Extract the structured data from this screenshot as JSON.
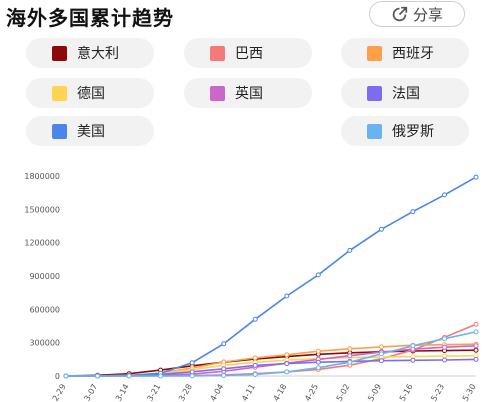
{
  "header": {
    "title": "海外多国累计趋势",
    "share_label": "分享"
  },
  "chart_data": {
    "type": "line",
    "title": "海外多国累计趋势",
    "categories": [
      "2-29",
      "3-07",
      "3-14",
      "3-21",
      "3-28",
      "4-04",
      "4-11",
      "4-18",
      "4-25",
      "5-02",
      "5-09",
      "5-16",
      "5-23",
      "5-30"
    ],
    "y_ticks": [
      "0",
      "300000",
      "600000",
      "900000",
      "1200000",
      "1500000",
      "1800000"
    ],
    "ylim": [
      0,
      1800000
    ],
    "grid": false,
    "legend_position": "top",
    "series": [
      {
        "name": "意大利",
        "color": "#8b0a0a",
        "values": [
          1100,
          5900,
          21000,
          53000,
          92000,
          124000,
          152000,
          175000,
          195000,
          209000,
          218000,
          225000,
          229000,
          232000
        ]
      },
      {
        "name": "巴西",
        "color": "#f47a7a",
        "values": [
          1,
          19,
          121,
          1000,
          3900,
          10300,
          20700,
          36600,
          59300,
          97100,
          155900,
          233000,
          347000,
          465000
        ]
      },
      {
        "name": "西班牙",
        "color": "#ff9f4a",
        "values": [
          45,
          500,
          6400,
          25000,
          73000,
          126000,
          163000,
          191000,
          223000,
          245000,
          262000,
          277000,
          282000,
          286000
        ]
      },
      {
        "name": "德国",
        "color": "#ffd452",
        "values": [
          79,
          800,
          4600,
          22000,
          57000,
          96000,
          122000,
          143000,
          156000,
          165000,
          170000,
          175000,
          179000,
          182000
        ]
      },
      {
        "name": "英国",
        "color": "#cc66cc",
        "values": [
          23,
          206,
          1100,
          5000,
          17000,
          42000,
          79000,
          115000,
          149000,
          183000,
          215000,
          241000,
          259000,
          272000
        ]
      },
      {
        "name": "法国",
        "color": "#7b6cf2",
        "values": [
          100,
          950,
          4500,
          14400,
          38000,
          65000,
          95000,
          112000,
          124000,
          131000,
          138000,
          141000,
          144000,
          149000
        ]
      },
      {
        "name": "美国",
        "color": "#4a86e8",
        "values": [
          70,
          400,
          2700,
          24000,
          120000,
          290000,
          510000,
          720000,
          910000,
          1130000,
          1320000,
          1480000,
          1630000,
          1790000
        ]
      },
      {
        "name": "俄罗斯",
        "color": "#69b4f0",
        "values": [
          2,
          10,
          63,
          306,
          1264,
          4731,
          13584,
          36793,
          74588,
          124054,
          198676,
          272043,
          335882,
          396575
        ]
      }
    ]
  }
}
